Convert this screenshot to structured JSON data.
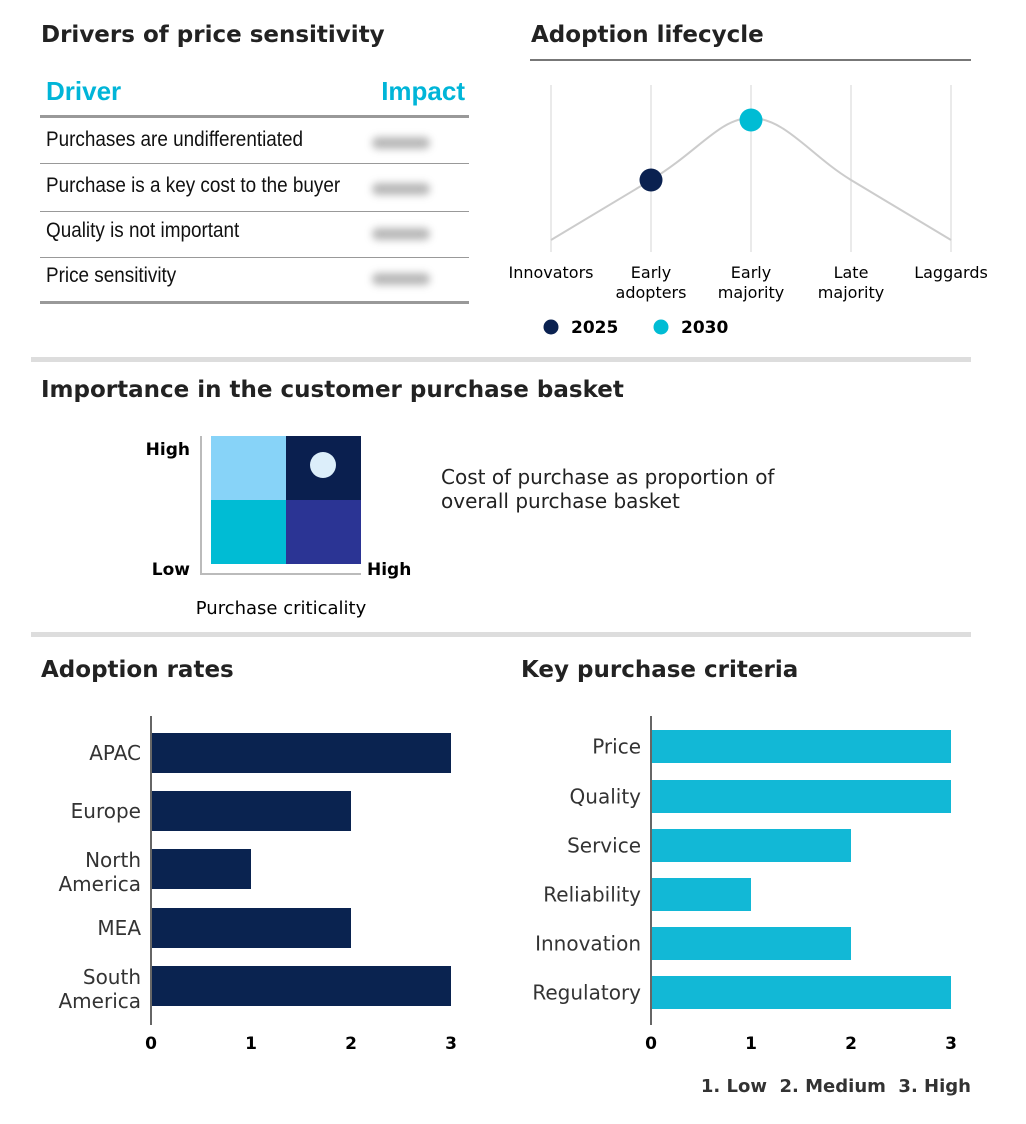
{
  "colors": {
    "navy": "#0a2150",
    "cyan": "#00bcd4",
    "kpc_bar": "#12b8d6",
    "adoption_bar": "#0a2350"
  },
  "drivers": {
    "title": "Drivers of price sensitivity",
    "col_driver": "Driver",
    "col_impact": "Impact",
    "rows": [
      {
        "driver": "Purchases are undifferentiated"
      },
      {
        "driver": "Purchase is a key cost to the buyer"
      },
      {
        "driver": "Quality is not important"
      },
      {
        "driver": "Price sensitivity"
      }
    ]
  },
  "lifecycle": {
    "title": "Adoption lifecycle",
    "stages": [
      [
        "Innovators",
        ""
      ],
      [
        "Early",
        "adopters"
      ],
      [
        "Early",
        "majority"
      ],
      [
        "Late",
        "majority"
      ],
      [
        "Laggards",
        ""
      ]
    ],
    "legend": [
      {
        "label": "2025",
        "stage": 1
      },
      {
        "label": "2030",
        "stage": 2
      }
    ]
  },
  "basket": {
    "title": "Importance in the customer purchase basket",
    "y_high": "High",
    "y_low": "Low",
    "x_high": "High",
    "x_label": "Purchase criticality",
    "description": [
      "Cost of purchase as proportion of",
      "overall purchase basket"
    ],
    "selected_quadrant": "high-high"
  },
  "chart_data": [
    {
      "type": "bar",
      "orientation": "horizontal",
      "title": "Adoption rates",
      "categories": [
        "APAC",
        "Europe",
        "North America",
        "MEA",
        "South America"
      ],
      "values": [
        3,
        2,
        1,
        2,
        3
      ],
      "xlim": [
        0,
        3
      ],
      "xticks": [
        0,
        1,
        2,
        3
      ]
    },
    {
      "type": "bar",
      "orientation": "horizontal",
      "title": "Key purchase criteria",
      "categories": [
        "Price",
        "Quality",
        "Service",
        "Reliability",
        "Innovation",
        "Regulatory"
      ],
      "values": [
        3,
        3,
        2,
        1,
        2,
        3
      ],
      "xlim": [
        0,
        3
      ],
      "xticks": [
        0,
        1,
        2,
        3
      ],
      "scale_legend": "1. Low  2. Medium  3. High"
    }
  ]
}
